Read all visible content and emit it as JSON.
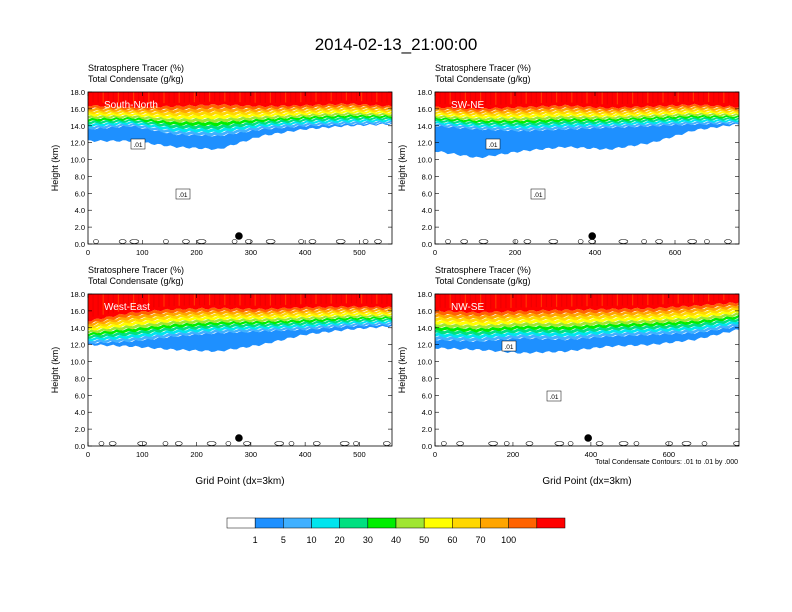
{
  "figure": {
    "title": "2014-02-13_21:00:00",
    "footnote": "Total Condensate Contours: .01 to .01 by .000"
  },
  "chart_data": [
    {
      "type": "heatmap",
      "panel": "South-North",
      "title_line1": "Stratosphere Tracer   (%)",
      "title_line2": "Total Condensate   (g/kg)",
      "ylabel": "Height (km)",
      "xlabel": "",
      "xlim": [
        0,
        560
      ],
      "ylim": [
        0,
        18
      ],
      "xticks": [
        0,
        100,
        200,
        300,
        400,
        500
      ],
      "yticks": [
        "0.0",
        "2.0",
        "4.0",
        "6.0",
        "8.0",
        "10.0",
        "12.0",
        "14.0",
        "16.0",
        "18.0"
      ],
      "marker_x": 278,
      "layers": {
        "tracer_100_base_km": [
          16.4,
          16.2,
          16.3,
          16.5,
          16.3,
          16.4,
          16.6,
          16.3
        ],
        "tracer_1_base_km": [
          13.6,
          14.0,
          13.0,
          12.8,
          13.6,
          14.0,
          14.2,
          14.3
        ],
        "light_blue_bottom_km": [
          12.2,
          12.2,
          11.5,
          11.2,
          12.8,
          13.6,
          14.0,
          14.2
        ]
      },
      "contour_labels": [
        ".01",
        ".01"
      ]
    },
    {
      "type": "heatmap",
      "panel": "SW-NE",
      "title_line1": "Stratosphere Tracer   (%)",
      "title_line2": "Total Condensate   (g/kg)",
      "ylabel": "Height (km)",
      "xlabel": "",
      "xlim": [
        0,
        760
      ],
      "ylim": [
        0,
        18
      ],
      "xticks": [
        0,
        200,
        400,
        600
      ],
      "yticks": [
        "0.0",
        "2.0",
        "4.0",
        "6.0",
        "8.0",
        "10.0",
        "12.0",
        "14.0",
        "16.0",
        "18.0"
      ],
      "marker_x": 393,
      "layers": {
        "tracer_100_base_km": [
          16.2,
          16.0,
          16.2,
          16.4,
          16.1,
          16.3,
          16.5,
          16.2
        ],
        "tracer_1_base_km": [
          14.0,
          13.6,
          13.4,
          13.6,
          13.8,
          14.0,
          14.2,
          14.3
        ],
        "light_blue_bottom_km": [
          11.0,
          10.2,
          11.0,
          11.5,
          11.2,
          12.0,
          13.5,
          14.2
        ]
      },
      "contour_labels": [
        ".01",
        ".01"
      ]
    },
    {
      "type": "heatmap",
      "panel": "West-East",
      "title_line1": "Stratosphere Tracer   (%)",
      "title_line2": "Total Condensate   (g/kg)",
      "ylabel": "Height (km)",
      "xlabel": "Grid Point (dx=3km)",
      "xlim": [
        0,
        560
      ],
      "ylim": [
        0,
        18
      ],
      "xticks": [
        0,
        100,
        200,
        300,
        400,
        500
      ],
      "yticks": [
        "0.0",
        "2.0",
        "4.0",
        "6.0",
        "8.0",
        "10.0",
        "12.0",
        "14.0",
        "16.0",
        "18.0"
      ],
      "marker_x": 278,
      "layers": {
        "tracer_100_base_km": [
          14.8,
          15.8,
          16.2,
          16.3,
          16.2,
          16.4,
          16.5,
          16.4
        ],
        "tracer_1_base_km": [
          12.2,
          12.4,
          13.0,
          13.4,
          13.6,
          13.8,
          14.2,
          14.4
        ],
        "light_blue_bottom_km": [
          12.0,
          11.8,
          11.4,
          11.2,
          12.0,
          13.2,
          13.8,
          14.2
        ]
      },
      "contour_labels": []
    },
    {
      "type": "heatmap",
      "panel": "NW-SE",
      "title_line1": "Stratosphere Tracer   (%)",
      "title_line2": "Total Condensate   (g/kg)",
      "ylabel": "Height (km)",
      "xlabel": "Grid Point (dx=3km)",
      "xlim": [
        0,
        780
      ],
      "ylim": [
        0,
        18
      ],
      "xticks": [
        0,
        200,
        400,
        600
      ],
      "yticks": [
        "0.0",
        "2.0",
        "4.0",
        "6.0",
        "8.0",
        "10.0",
        "12.0",
        "14.0",
        "16.0",
        "18.0"
      ],
      "marker_x": 393,
      "layers": {
        "tracer_100_base_km": [
          16.0,
          15.8,
          16.0,
          16.1,
          16.2,
          16.3,
          16.6,
          17.0
        ],
        "tracer_1_base_km": [
          12.6,
          12.4,
          12.8,
          12.6,
          13.0,
          13.2,
          13.4,
          14.2
        ],
        "light_blue_bottom_km": [
          11.6,
          11.4,
          11.0,
          11.2,
          11.8,
          12.0,
          12.6,
          13.8
        ]
      },
      "contour_labels": [
        ".01",
        ".01"
      ]
    }
  ],
  "colorbar": {
    "labels": [
      "1",
      "5",
      "10",
      "20",
      "30",
      "40",
      "50",
      "60",
      "70",
      "100"
    ],
    "colors": [
      "#ffffff",
      "#1e90ff",
      "#40b0ff",
      "#00e5ee",
      "#00e080",
      "#00ee00",
      "#a0e632",
      "#ffff00",
      "#ffd700",
      "#ffa500",
      "#ff6300",
      "#ff0000"
    ]
  }
}
